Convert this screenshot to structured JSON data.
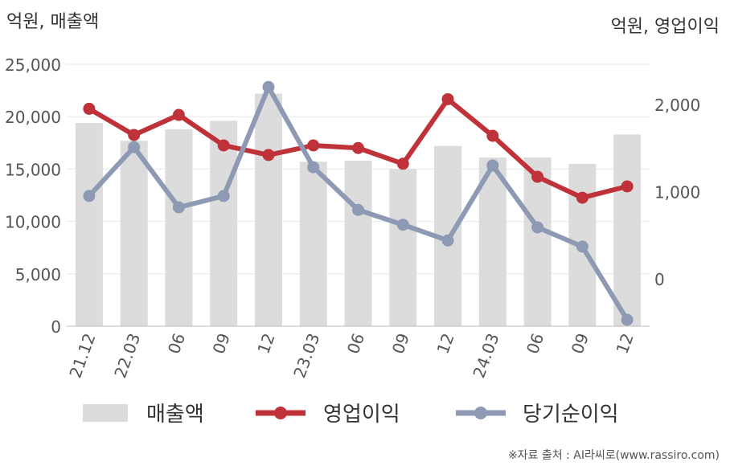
{
  "chart_data": {
    "type": "bar+line",
    "left_unit_label": "억원, 매출액",
    "right_unit_label": "억원, 영업이익",
    "categories": [
      "21.12",
      "22.03",
      "06",
      "09",
      "12",
      "23.03",
      "06",
      "09",
      "12",
      "24.03",
      "06",
      "09",
      "12"
    ],
    "left_axis": {
      "min": 0,
      "max": 25000,
      "ticks": [
        "0",
        "5,000",
        "10,000",
        "15,000",
        "20,000",
        "25,000"
      ]
    },
    "right_axis": {
      "ticks": [
        "0",
        "1,000",
        "2,000"
      ],
      "tick_values": [
        0,
        1000,
        2000
      ]
    },
    "bars": {
      "name": "매출액",
      "color": "#dcdcdc",
      "values": [
        19400,
        17700,
        18800,
        19600,
        22200,
        15700,
        15800,
        15000,
        17200,
        16100,
        16100,
        15500,
        18300
      ]
    },
    "series": [
      {
        "name": "영업이익",
        "axis": "right",
        "color": "#c0323a",
        "values": [
          1950,
          1650,
          1880,
          1530,
          1420,
          1530,
          1500,
          1320,
          2060,
          1640,
          1170,
          930,
          1060
        ]
      },
      {
        "name": "당기순이익",
        "axis": "right",
        "color": "#8e9ab3",
        "values": [
          950,
          1510,
          820,
          950,
          2200,
          1280,
          790,
          620,
          440,
          1300,
          590,
          370,
          -470
        ]
      }
    ],
    "grid": true,
    "legend_position": "bottom"
  },
  "source_note": "※자료 출처 : AI라씨로(www.rassiro.com)"
}
